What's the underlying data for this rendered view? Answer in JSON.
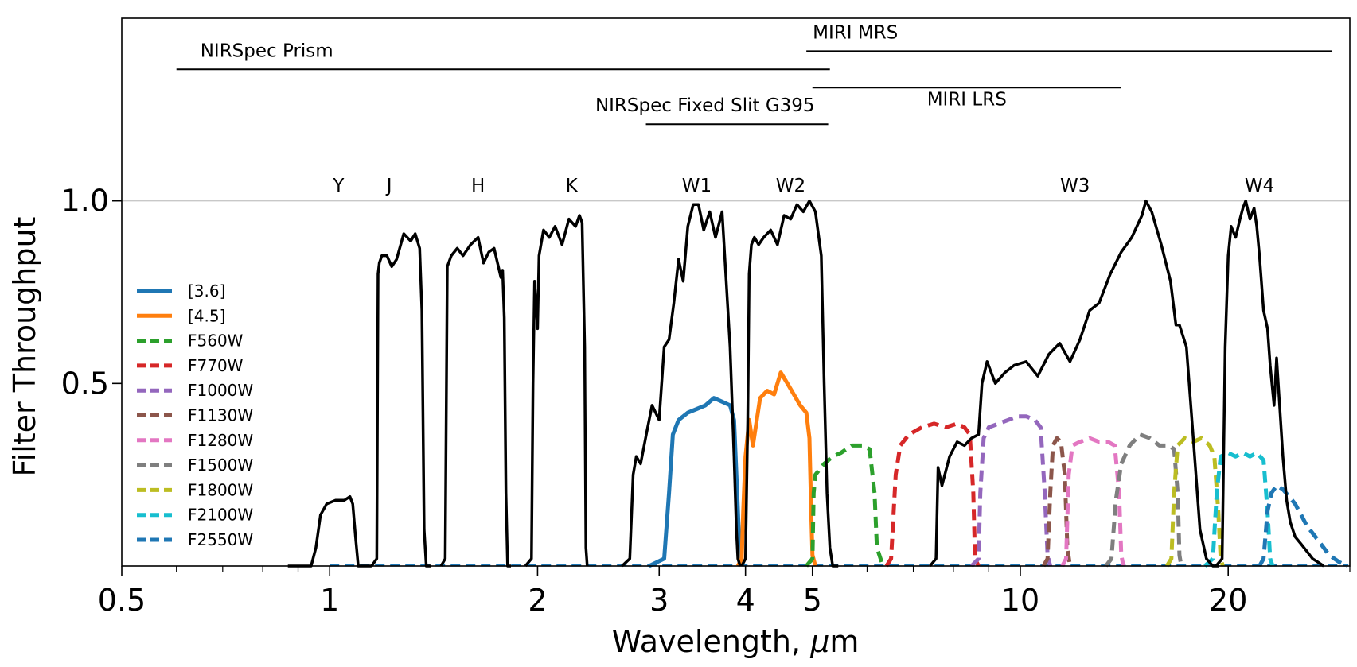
{
  "chart_data": {
    "type": "line",
    "title": "",
    "xlabel": "Wavelength, $\\mu$m",
    "xlabel_prefix": "Wavelength, ",
    "xlabel_symbol": "μ",
    "xlabel_suffix": "m",
    "ylabel": "Filter Throughput",
    "xscale": "log",
    "xlim": [
      0.5,
      30
    ],
    "ylim": [
      0,
      1.5
    ],
    "xticks": [
      {
        "value": 0.5,
        "label": "0.5"
      },
      {
        "value": 1,
        "label": "1"
      },
      {
        "value": 2,
        "label": "2"
      },
      {
        "value": 3,
        "label": "3"
      },
      {
        "value": 4,
        "label": "4"
      },
      {
        "value": 5,
        "label": "5"
      },
      {
        "value": 10,
        "label": "10"
      },
      {
        "value": 20,
        "label": "20"
      }
    ],
    "yticks": [
      {
        "value": 0.5,
        "label": "0.5"
      },
      {
        "value": 1.0,
        "label": "1.0"
      }
    ],
    "reference_line_y": 1.0,
    "legend_position": "center-left",
    "instruments": [
      {
        "label": "NIRSpec Prism",
        "x_start": 0.6,
        "x_end": 5.3,
        "y": 1.36
      },
      {
        "label": "MIRI MRS",
        "x_start": 4.9,
        "x_end": 28.3,
        "y": 1.41
      },
      {
        "label": "MIRI LRS",
        "x_start": 5.0,
        "x_end": 14.0,
        "y": 1.31
      },
      {
        "label": "NIRSpec Fixed Slit G395",
        "x_start": 2.87,
        "x_end": 5.27,
        "y": 1.21
      }
    ],
    "band_labels": [
      {
        "label": "Y",
        "x": 1.03
      },
      {
        "label": "J",
        "x": 1.22
      },
      {
        "label": "H",
        "x": 1.64
      },
      {
        "label": "K",
        "x": 2.24
      },
      {
        "label": "W1",
        "x": 3.4
      },
      {
        "label": "W2",
        "x": 4.65
      },
      {
        "label": "W3",
        "x": 12.0
      },
      {
        "label": "W4",
        "x": 22.2
      }
    ],
    "reference_filters": {
      "color": "#000000",
      "curves": [
        {
          "band": "Y",
          "x": [
            0.87,
            0.94,
            0.955,
            0.97,
            0.99,
            1.02,
            1.05,
            1.07,
            1.08,
            1.09,
            1.1,
            1.15
          ],
          "y": [
            0,
            0,
            0.05,
            0.14,
            0.17,
            0.18,
            0.18,
            0.19,
            0.17,
            0.08,
            0,
            0
          ]
        },
        {
          "band": "J",
          "x": [
            1.15,
            1.17,
            1.175,
            1.18,
            1.19,
            1.21,
            1.23,
            1.25,
            1.28,
            1.31,
            1.33,
            1.35,
            1.36,
            1.37,
            1.38,
            1.4
          ],
          "y": [
            0,
            0.02,
            0.8,
            0.83,
            0.85,
            0.85,
            0.82,
            0.84,
            0.91,
            0.89,
            0.91,
            0.87,
            0.7,
            0.1,
            0,
            0
          ]
        },
        {
          "band": "H",
          "x": [
            1.45,
            1.47,
            1.48,
            1.5,
            1.53,
            1.56,
            1.6,
            1.64,
            1.67,
            1.7,
            1.73,
            1.77,
            1.78,
            1.79,
            1.8,
            1.81,
            1.83
          ],
          "y": [
            0,
            0.02,
            0.82,
            0.85,
            0.87,
            0.85,
            0.88,
            0.9,
            0.83,
            0.86,
            0.87,
            0.79,
            0.81,
            0.68,
            0.2,
            0,
            0
          ]
        },
        {
          "band": "K",
          "x": [
            1.92,
            1.96,
            1.97,
            1.98,
            2.0,
            2.01,
            2.04,
            2.08,
            2.12,
            2.17,
            2.22,
            2.27,
            2.3,
            2.32,
            2.34,
            2.35,
            2.36
          ],
          "y": [
            0,
            0.02,
            0.5,
            0.78,
            0.65,
            0.85,
            0.92,
            0.9,
            0.93,
            0.88,
            0.95,
            0.93,
            0.96,
            0.94,
            0.6,
            0.05,
            0
          ]
        },
        {
          "band": "W1",
          "x": [
            2.65,
            2.72,
            2.75,
            2.78,
            2.82,
            2.88,
            2.93,
            3.0,
            3.05,
            3.1,
            3.15,
            3.2,
            3.25,
            3.3,
            3.36,
            3.42,
            3.48,
            3.55,
            3.62,
            3.7,
            3.8,
            3.85,
            3.88,
            3.9,
            3.93
          ],
          "y": [
            0,
            0.02,
            0.25,
            0.3,
            0.28,
            0.37,
            0.44,
            0.4,
            0.6,
            0.62,
            0.72,
            0.84,
            0.78,
            0.93,
            0.99,
            0.99,
            0.92,
            0.97,
            0.9,
            0.97,
            0.6,
            0.3,
            0.1,
            0.02,
            0
          ]
        },
        {
          "band": "W2",
          "x": [
            3.95,
            4.0,
            4.03,
            4.05,
            4.08,
            4.12,
            4.18,
            4.25,
            4.35,
            4.45,
            4.55,
            4.65,
            4.75,
            4.85,
            4.95,
            5.05,
            5.15,
            5.2,
            5.25,
            5.3,
            5.35,
            5.45
          ],
          "y": [
            0,
            0.02,
            0.4,
            0.8,
            0.88,
            0.9,
            0.88,
            0.9,
            0.92,
            0.88,
            0.96,
            0.95,
            0.99,
            0.97,
            1.0,
            0.97,
            0.85,
            0.5,
            0.2,
            0.05,
            0,
            0
          ]
        },
        {
          "band": "W3",
          "x": [
            7.4,
            7.55,
            7.6,
            7.7,
            7.9,
            8.1,
            8.3,
            8.5,
            8.7,
            8.8,
            8.95,
            9.2,
            9.5,
            9.8,
            10.2,
            10.6,
            11.0,
            11.4,
            11.8,
            12.2,
            12.6,
            13.0,
            13.5,
            14.0,
            14.5,
            15.0,
            15.2,
            15.5,
            16.0,
            16.5,
            16.8,
            17.0,
            17.4,
            17.8,
            18.2,
            18.6,
            19.0,
            19.4
          ],
          "y": [
            0,
            0.02,
            0.27,
            0.22,
            0.3,
            0.34,
            0.33,
            0.35,
            0.36,
            0.5,
            0.56,
            0.5,
            0.53,
            0.55,
            0.56,
            0.52,
            0.58,
            0.61,
            0.56,
            0.62,
            0.7,
            0.72,
            0.8,
            0.86,
            0.9,
            0.96,
            1.0,
            0.97,
            0.88,
            0.78,
            0.66,
            0.66,
            0.6,
            0.35,
            0.1,
            0.02,
            0,
            0
          ]
        },
        {
          "band": "W4",
          "x": [
            19.2,
            19.6,
            19.8,
            20.0,
            20.2,
            20.5,
            20.8,
            21.0,
            21.2,
            21.5,
            21.8,
            22.0,
            22.2,
            22.5,
            22.8,
            23.0,
            23.3,
            23.5,
            24.0,
            24.3,
            24.6,
            25.0,
            25.5,
            26.0,
            26.5,
            27.0,
            27.5
          ],
          "y": [
            0,
            0.02,
            0.6,
            0.85,
            0.93,
            0.9,
            0.95,
            0.98,
            1.0,
            0.95,
            0.98,
            0.93,
            0.85,
            0.7,
            0.65,
            0.55,
            0.44,
            0.57,
            0.3,
            0.18,
            0.12,
            0.08,
            0.06,
            0.04,
            0.02,
            0.01,
            0
          ]
        }
      ]
    },
    "series": [
      {
        "name": "[3.6]",
        "color": "#1f77b4",
        "style": "solid",
        "x": [
          2.9,
          3.05,
          3.1,
          3.14,
          3.2,
          3.3,
          3.4,
          3.5,
          3.6,
          3.7,
          3.8,
          3.85,
          3.89,
          3.92,
          3.95
        ],
        "y": [
          0,
          0.02,
          0.2,
          0.36,
          0.4,
          0.42,
          0.43,
          0.44,
          0.46,
          0.45,
          0.44,
          0.4,
          0.2,
          0.05,
          0
        ]
      },
      {
        "name": "[4.5]",
        "color": "#ff7f0e",
        "style": "solid",
        "x": [
          3.9,
          3.95,
          3.97,
          4.0,
          4.05,
          4.1,
          4.2,
          4.3,
          4.4,
          4.5,
          4.6,
          4.7,
          4.8,
          4.9,
          4.95,
          4.98,
          5.0,
          5.05
        ],
        "y": [
          0,
          0.02,
          0.15,
          0.3,
          0.4,
          0.33,
          0.46,
          0.48,
          0.47,
          0.53,
          0.5,
          0.47,
          0.44,
          0.42,
          0.35,
          0.15,
          0.03,
          0
        ]
      },
      {
        "name": "F560W",
        "color": "#2ca02c",
        "style": "dashed",
        "x": [
          4.9,
          5.0,
          5.02,
          5.05,
          5.1,
          5.2,
          5.35,
          5.5,
          5.7,
          5.9,
          6.05,
          6.15,
          6.2,
          6.3,
          6.4
        ],
        "y": [
          0,
          0.02,
          0.2,
          0.25,
          0.26,
          0.28,
          0.3,
          0.31,
          0.33,
          0.33,
          0.32,
          0.2,
          0.05,
          0.01,
          0
        ]
      },
      {
        "name": "F770W",
        "color": "#d62728",
        "style": "dashed",
        "x": [
          6.4,
          6.5,
          6.6,
          6.7,
          6.9,
          7.2,
          7.5,
          7.8,
          8.1,
          8.3,
          8.45,
          8.55,
          8.6,
          8.7
        ],
        "y": [
          0,
          0.02,
          0.25,
          0.33,
          0.36,
          0.38,
          0.39,
          0.38,
          0.39,
          0.38,
          0.36,
          0.2,
          0.02,
          0
        ]
      },
      {
        "name": "F1000W",
        "color": "#9467bd",
        "style": "dashed",
        "x": [
          8.5,
          8.7,
          8.75,
          8.85,
          9.0,
          9.3,
          9.6,
          9.9,
          10.2,
          10.5,
          10.7,
          10.85,
          10.95,
          11.05
        ],
        "y": [
          0,
          0.02,
          0.2,
          0.35,
          0.38,
          0.39,
          0.4,
          0.41,
          0.41,
          0.4,
          0.38,
          0.2,
          0.03,
          0
        ]
      },
      {
        "name": "F1130W",
        "color": "#8c564b",
        "style": "dashed",
        "x": [
          10.8,
          10.95,
          11.05,
          11.15,
          11.3,
          11.45,
          11.6,
          11.7,
          11.8
        ],
        "y": [
          0,
          0.02,
          0.2,
          0.33,
          0.35,
          0.34,
          0.25,
          0.05,
          0
        ]
      },
      {
        "name": "F1280W",
        "color": "#e377c2",
        "style": "dashed",
        "x": [
          11.5,
          11.65,
          11.75,
          11.9,
          12.2,
          12.6,
          13.0,
          13.4,
          13.7,
          13.9,
          14.0,
          14.1
        ],
        "y": [
          0,
          0.02,
          0.25,
          0.33,
          0.34,
          0.35,
          0.34,
          0.34,
          0.33,
          0.2,
          0.03,
          0
        ]
      },
      {
        "name": "F1500W",
        "color": "#7f7f7f",
        "style": "dashed",
        "x": [
          13.3,
          13.55,
          13.75,
          14.0,
          14.4,
          14.9,
          15.4,
          15.9,
          16.4,
          16.7,
          16.9,
          17.0,
          17.1
        ],
        "y": [
          0,
          0.02,
          0.18,
          0.28,
          0.33,
          0.36,
          0.35,
          0.33,
          0.33,
          0.32,
          0.2,
          0.03,
          0
        ]
      },
      {
        "name": "F1800W",
        "color": "#bcbd22",
        "style": "dashed",
        "x": [
          16.3,
          16.55,
          16.7,
          16.9,
          17.3,
          17.8,
          18.3,
          18.8,
          19.1,
          19.35,
          19.5,
          19.65
        ],
        "y": [
          0,
          0.02,
          0.2,
          0.33,
          0.35,
          0.34,
          0.35,
          0.33,
          0.3,
          0.15,
          0.02,
          0
        ]
      },
      {
        "name": "F2100W",
        "color": "#17becf",
        "style": "dashed",
        "x": [
          18.5,
          19.0,
          19.25,
          19.5,
          20.0,
          20.5,
          21.0,
          21.5,
          22.0,
          22.5,
          22.8,
          23.0,
          23.2
        ],
        "y": [
          0,
          0.02,
          0.2,
          0.3,
          0.31,
          0.3,
          0.31,
          0.3,
          0.31,
          0.29,
          0.15,
          0.02,
          0
        ]
      },
      {
        "name": "F2550W",
        "color": "#1f77b4",
        "style": "dashed",
        "x": [
          22.2,
          22.5,
          22.8,
          23.1,
          23.5,
          24.0,
          24.5,
          25.0,
          25.5,
          26.0,
          26.5,
          27.0,
          27.5,
          28.0,
          29.0,
          29.8
        ],
        "y": [
          0,
          0.02,
          0.15,
          0.2,
          0.22,
          0.21,
          0.19,
          0.17,
          0.14,
          0.11,
          0.09,
          0.07,
          0.05,
          0.03,
          0.01,
          0
        ]
      }
    ]
  }
}
